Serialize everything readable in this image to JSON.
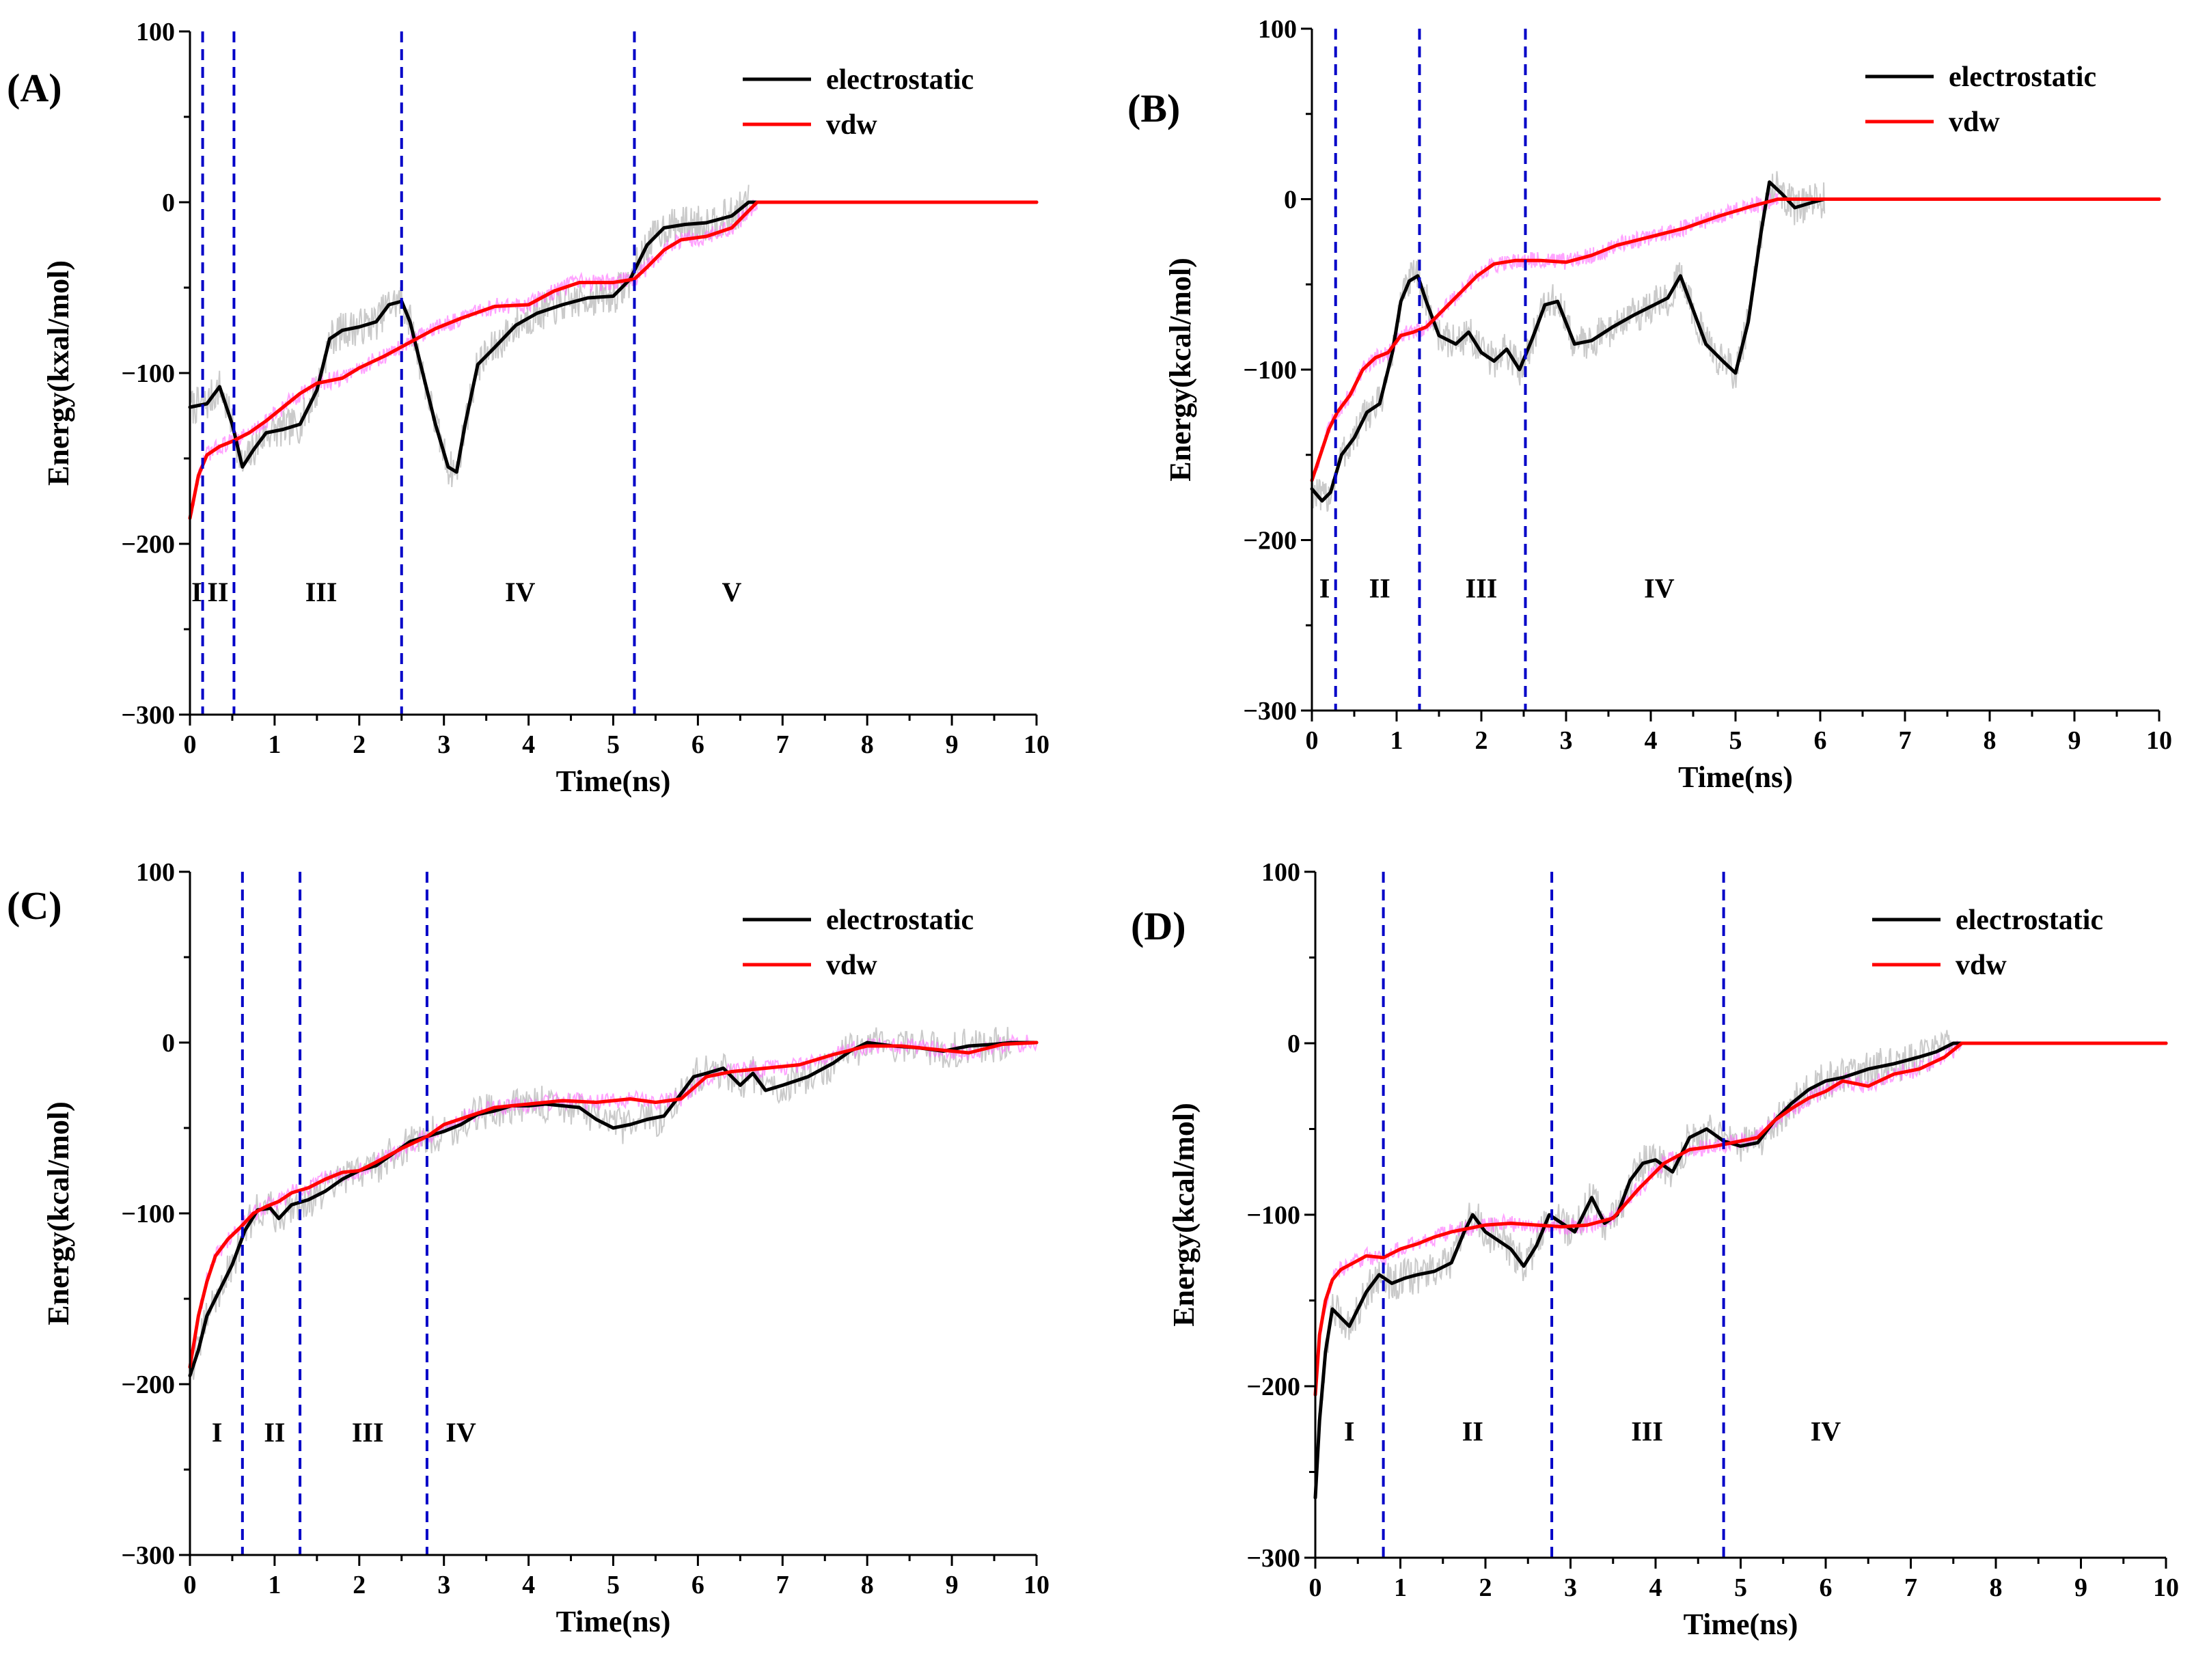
{
  "chart_data": [
    {
      "type": "line",
      "panel_label": "(A)",
      "xlabel": "Time(ns)",
      "ylabel": "Energy(kxal/mol)",
      "xlim": [
        0,
        10
      ],
      "ylim": [
        -300,
        100
      ],
      "xticks": [
        0,
        1,
        2,
        3,
        4,
        5,
        6,
        7,
        8,
        9,
        10
      ],
      "yticks": [
        -300,
        -200,
        -100,
        0,
        100
      ],
      "legend_position": "top-right",
      "stage_boundaries": [
        0.15,
        0.52,
        2.5,
        5.25
      ],
      "stage_labels": [
        {
          "text": "I",
          "x": 0.08
        },
        {
          "text": "II",
          "x": 0.33
        },
        {
          "text": "III",
          "x": 1.55
        },
        {
          "text": "IV",
          "x": 3.9
        },
        {
          "text": "V",
          "x": 6.4
        }
      ],
      "stage_label_y": -228,
      "series": [
        {
          "name": "electrostatic",
          "color": "#000000",
          "noise_color": "#bdbdbd",
          "x": [
            0,
            0.2,
            0.35,
            0.5,
            0.62,
            0.75,
            0.9,
            1.1,
            1.3,
            1.5,
            1.65,
            1.8,
            2.0,
            2.2,
            2.35,
            2.5,
            2.6,
            2.75,
            2.9,
            3.05,
            3.15,
            3.25,
            3.4,
            3.6,
            3.85,
            4.1,
            4.4,
            4.7,
            5.0,
            5.2,
            5.4,
            5.6,
            5.85,
            6.1,
            6.4,
            6.6,
            6.8,
            7.0,
            7.5,
            8,
            9,
            10
          ],
          "y": [
            -120,
            -118,
            -108,
            -130,
            -155,
            -145,
            -135,
            -133,
            -130,
            -110,
            -80,
            -75,
            -73,
            -70,
            -60,
            -58,
            -70,
            -100,
            -130,
            -155,
            -158,
            -130,
            -95,
            -85,
            -72,
            -65,
            -60,
            -56,
            -55,
            -45,
            -25,
            -15,
            -13,
            -12,
            -8,
            0,
            0,
            0,
            0,
            0,
            0,
            0
          ]
        },
        {
          "name": "vdw",
          "color": "#ff0000",
          "noise_color": "#ff66ff",
          "x": [
            0,
            0.1,
            0.2,
            0.35,
            0.5,
            0.7,
            0.9,
            1.1,
            1.3,
            1.5,
            1.8,
            2.0,
            2.3,
            2.6,
            2.9,
            3.2,
            3.6,
            4.0,
            4.3,
            4.6,
            5.0,
            5.25,
            5.4,
            5.6,
            5.8,
            6.1,
            6.4,
            6.7,
            7.0,
            8,
            9,
            10
          ],
          "y": [
            -185,
            -160,
            -148,
            -143,
            -140,
            -135,
            -128,
            -120,
            -112,
            -106,
            -103,
            -97,
            -90,
            -82,
            -74,
            -68,
            -61,
            -60,
            -52,
            -47,
            -47,
            -45,
            -38,
            -28,
            -22,
            -20,
            -15,
            0,
            0,
            0,
            0,
            0
          ]
        }
      ]
    },
    {
      "type": "line",
      "panel_label": "(B)",
      "xlabel": "Time(ns)",
      "ylabel": "Energy(kcal/mol)",
      "xlim": [
        0,
        10
      ],
      "ylim": [
        -300,
        100
      ],
      "xticks": [
        0,
        1,
        2,
        3,
        4,
        5,
        6,
        7,
        8,
        9,
        10
      ],
      "yticks": [
        -300,
        -200,
        -100,
        0,
        100
      ],
      "legend_position": "top-right",
      "stage_boundaries": [
        0.28,
        1.27,
        2.52
      ],
      "stage_labels": [
        {
          "text": "I",
          "x": 0.15
        },
        {
          "text": "II",
          "x": 0.8
        },
        {
          "text": "III",
          "x": 2.0
        },
        {
          "text": "IV",
          "x": 4.1
        }
      ],
      "stage_label_y": -228,
      "series": [
        {
          "name": "electrostatic",
          "color": "#000000",
          "noise_color": "#bdbdbd",
          "x": [
            0,
            0.12,
            0.22,
            0.35,
            0.5,
            0.65,
            0.8,
            0.95,
            1.05,
            1.15,
            1.25,
            1.35,
            1.5,
            1.7,
            1.85,
            2.0,
            2.15,
            2.3,
            2.45,
            2.6,
            2.75,
            2.9,
            3.1,
            3.3,
            3.55,
            3.8,
            4.0,
            4.2,
            4.35,
            4.5,
            4.65,
            4.85,
            5.0,
            5.15,
            5.3,
            5.4,
            5.55,
            5.7,
            5.9,
            6.05,
            7,
            8,
            9,
            10
          ],
          "y": [
            -170,
            -177,
            -172,
            -150,
            -140,
            -125,
            -120,
            -90,
            -60,
            -48,
            -45,
            -60,
            -80,
            -85,
            -78,
            -90,
            -95,
            -88,
            -100,
            -82,
            -62,
            -60,
            -85,
            -83,
            -75,
            -68,
            -63,
            -58,
            -45,
            -65,
            -85,
            -95,
            -102,
            -72,
            -20,
            10,
            3,
            -5,
            -2,
            0,
            0,
            0,
            0,
            0
          ]
        },
        {
          "name": "vdw",
          "color": "#ff0000",
          "noise_color": "#ff66ff",
          "x": [
            0,
            0.1,
            0.2,
            0.3,
            0.45,
            0.6,
            0.75,
            0.9,
            1.05,
            1.2,
            1.35,
            1.55,
            1.75,
            1.95,
            2.15,
            2.4,
            2.7,
            3.0,
            3.3,
            3.6,
            4.0,
            4.4,
            4.8,
            5.2,
            5.5,
            5.8,
            6.1,
            7,
            8,
            9,
            10
          ],
          "y": [
            -165,
            -150,
            -135,
            -125,
            -115,
            -100,
            -93,
            -90,
            -80,
            -78,
            -75,
            -65,
            -55,
            -45,
            -38,
            -36,
            -36,
            -37,
            -33,
            -27,
            -22,
            -17,
            -10,
            -4,
            0,
            0,
            0,
            0,
            0,
            0,
            0
          ]
        }
      ]
    },
    {
      "type": "line",
      "panel_label": "(C)",
      "xlabel": "Time(ns)",
      "ylabel": "Energy(kcal/mol)",
      "xlim": [
        0,
        10
      ],
      "ylim": [
        -300,
        100
      ],
      "xticks": [
        0,
        1,
        2,
        3,
        4,
        5,
        6,
        7,
        8,
        9,
        10
      ],
      "yticks": [
        -300,
        -200,
        -100,
        0,
        100
      ],
      "legend_position": "top-right",
      "stage_boundaries": [
        0.62,
        1.3,
        2.8
      ],
      "stage_labels": [
        {
          "text": "I",
          "x": 0.32
        },
        {
          "text": "II",
          "x": 1.0
        },
        {
          "text": "III",
          "x": 2.1
        },
        {
          "text": "IV",
          "x": 3.2
        }
      ],
      "stage_label_y": -228,
      "series": [
        {
          "name": "electrostatic",
          "color": "#000000",
          "noise_color": "#bdbdbd",
          "x": [
            0,
            0.1,
            0.2,
            0.35,
            0.5,
            0.65,
            0.8,
            0.95,
            1.05,
            1.2,
            1.4,
            1.6,
            1.8,
            2.0,
            2.2,
            2.4,
            2.6,
            2.8,
            3.0,
            3.2,
            3.4,
            3.6,
            3.8,
            4.0,
            4.2,
            4.4,
            4.6,
            4.8,
            5.0,
            5.2,
            5.4,
            5.6,
            5.8,
            5.95,
            6.1,
            6.3,
            6.5,
            6.65,
            6.8,
            7.0,
            7.3,
            7.6,
            7.8,
            8.0,
            8.3,
            8.6,
            8.9,
            9.2,
            9.5,
            9.7,
            10
          ],
          "y": [
            -195,
            -180,
            -160,
            -145,
            -130,
            -110,
            -98,
            -97,
            -103,
            -95,
            -92,
            -87,
            -80,
            -75,
            -72,
            -65,
            -58,
            -55,
            -52,
            -48,
            -42,
            -40,
            -37,
            -37,
            -36,
            -37,
            -38,
            -45,
            -50,
            -48,
            -45,
            -43,
            -30,
            -20,
            -18,
            -15,
            -25,
            -18,
            -28,
            -25,
            -20,
            -12,
            -5,
            0,
            -2,
            -3,
            -5,
            -2,
            -1,
            0,
            0
          ]
        },
        {
          "name": "vdw",
          "color": "#ff0000",
          "noise_color": "#ff66ff",
          "x": [
            0,
            0.1,
            0.2,
            0.3,
            0.45,
            0.6,
            0.75,
            0.9,
            1.05,
            1.2,
            1.4,
            1.6,
            1.8,
            2.0,
            2.2,
            2.5,
            2.8,
            3.0,
            3.3,
            3.6,
            4.0,
            4.4,
            4.8,
            5.2,
            5.5,
            5.8,
            6.1,
            6.4,
            6.8,
            7.2,
            7.6,
            8.0,
            8.4,
            8.8,
            9.2,
            9.6,
            10
          ],
          "y": [
            -190,
            -160,
            -140,
            -125,
            -115,
            -108,
            -100,
            -96,
            -93,
            -88,
            -85,
            -80,
            -76,
            -75,
            -70,
            -62,
            -55,
            -48,
            -43,
            -38,
            -36,
            -34,
            -35,
            -33,
            -35,
            -33,
            -20,
            -17,
            -15,
            -13,
            -7,
            -2,
            -2,
            -4,
            -6,
            -1,
            0
          ]
        }
      ]
    },
    {
      "type": "line",
      "panel_label": "(D)",
      "xlabel": "Time(ns)",
      "ylabel": "Energy(kcal/mol)",
      "xlim": [
        0,
        10
      ],
      "ylim": [
        -300,
        100
      ],
      "xticks": [
        0,
        1,
        2,
        3,
        4,
        5,
        6,
        7,
        8,
        9,
        10
      ],
      "yticks": [
        -300,
        -200,
        -100,
        0,
        100
      ],
      "legend_position": "top-right",
      "stage_boundaries": [
        0.8,
        2.78,
        4.8
      ],
      "stage_labels": [
        {
          "text": "I",
          "x": 0.4
        },
        {
          "text": "II",
          "x": 1.85
        },
        {
          "text": "III",
          "x": 3.9
        },
        {
          "text": "IV",
          "x": 6.0
        }
      ],
      "stage_label_y": -226,
      "series": [
        {
          "name": "electrostatic",
          "color": "#000000",
          "noise_color": "#bdbdbd",
          "x": [
            0,
            0.05,
            0.12,
            0.2,
            0.3,
            0.4,
            0.5,
            0.6,
            0.75,
            0.9,
            1.05,
            1.2,
            1.4,
            1.6,
            1.75,
            1.85,
            2.0,
            2.15,
            2.3,
            2.45,
            2.6,
            2.75,
            2.9,
            3.05,
            3.25,
            3.4,
            3.55,
            3.7,
            3.85,
            4.0,
            4.2,
            4.4,
            4.6,
            4.8,
            5.0,
            5.2,
            5.4,
            5.6,
            5.8,
            6.0,
            6.2,
            6.5,
            6.8,
            7.1,
            7.3,
            7.5,
            8,
            9,
            10
          ],
          "y": [
            -265,
            -220,
            -180,
            -155,
            -160,
            -165,
            -155,
            -145,
            -135,
            -140,
            -137,
            -135,
            -133,
            -128,
            -110,
            -100,
            -110,
            -115,
            -120,
            -130,
            -118,
            -100,
            -105,
            -110,
            -90,
            -105,
            -100,
            -80,
            -70,
            -68,
            -75,
            -55,
            -50,
            -57,
            -60,
            -58,
            -45,
            -35,
            -27,
            -22,
            -20,
            -15,
            -12,
            -8,
            -5,
            0,
            0,
            0,
            0
          ]
        },
        {
          "name": "vdw",
          "color": "#ff0000",
          "noise_color": "#ff66ff",
          "x": [
            0,
            0.05,
            0.12,
            0.2,
            0.3,
            0.45,
            0.6,
            0.8,
            1.0,
            1.2,
            1.4,
            1.6,
            1.8,
            2.0,
            2.3,
            2.6,
            2.9,
            3.2,
            3.5,
            3.8,
            4.1,
            4.4,
            4.7,
            5.0,
            5.2,
            5.4,
            5.6,
            5.8,
            6.0,
            6.2,
            6.5,
            6.8,
            7.1,
            7.4,
            7.6,
            8,
            9,
            10
          ],
          "y": [
            -205,
            -170,
            -150,
            -138,
            -132,
            -128,
            -124,
            -125,
            -120,
            -117,
            -113,
            -110,
            -108,
            -106,
            -105,
            -106,
            -107,
            -106,
            -102,
            -85,
            -70,
            -62,
            -60,
            -57,
            -55,
            -45,
            -38,
            -32,
            -28,
            -22,
            -25,
            -18,
            -15,
            -8,
            0,
            0,
            0,
            0
          ]
        }
      ]
    }
  ]
}
